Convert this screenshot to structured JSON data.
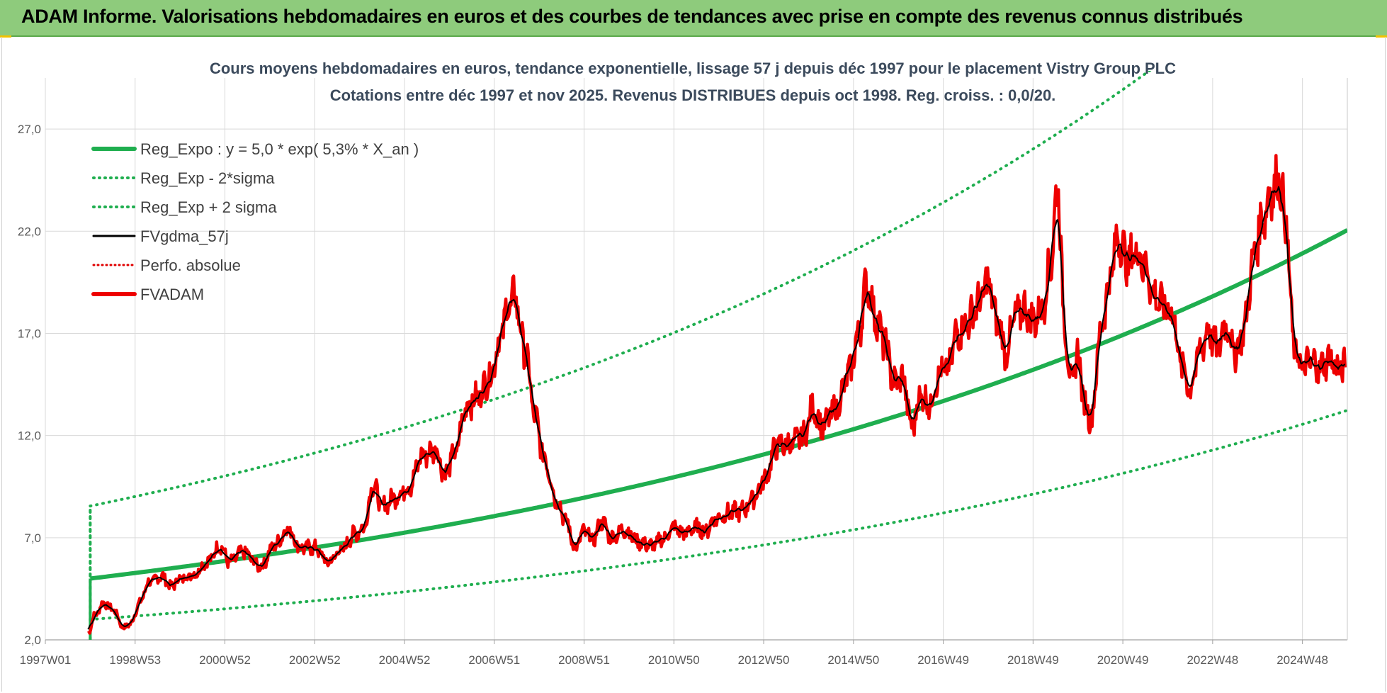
{
  "header": {
    "title": "ADAM Informe. Valorisations hebdomadaires en euros et des courbes de tendances avec prise en compte des revenus connus distribués"
  },
  "colors": {
    "header_bg": "#8ecb7c",
    "reg_expo": "#1fae4f",
    "sigma_lines": "#1fae4f",
    "fvgdma": "#000000",
    "perfo": "#e00000",
    "fvadam": "#ee0000",
    "grid": "#d9d9d9"
  },
  "chart_data": {
    "type": "line",
    "title_line1": "Cours moyens hebdomadaires en euros, tendance exponentielle, lissage 57 j depuis déc 1997 pour le placement Vistry Group PLC",
    "title_line2": "Cotations entre déc 1997 et nov 2025. Revenus DISTRIBUES depuis oct 1998. Reg. croiss. : 0,0/20.",
    "xlabel": "",
    "ylabel": "",
    "x_range": [
      1997.0,
      2026.0
    ],
    "ylim": [
      2.0,
      29.5
    ],
    "y_ticks": [
      "2,0",
      "7,0",
      "12,0",
      "17,0",
      "22,0",
      "27,0"
    ],
    "y_tick_values": [
      2,
      7,
      12,
      17,
      22,
      27
    ],
    "x_tick_labels": [
      "1997W01",
      "1998W53",
      "2000W52",
      "2002W52",
      "2004W52",
      "2006W51",
      "2008W51",
      "2010W50",
      "2012W50",
      "2014W50",
      "2016W49",
      "2018W49",
      "2020W49",
      "2022W48",
      "2024W48"
    ],
    "x_tick_values": [
      1997.0,
      1999.0,
      2001.0,
      2003.0,
      2005.0,
      2007.0,
      2009.0,
      2011.0,
      2013.0,
      2015.0,
      2017.0,
      2019.0,
      2021.0,
      2023.0,
      2025.0
    ],
    "grid": true,
    "legend_position": "top-left",
    "legend": [
      {
        "name": "Reg_Expo : y = 5,0 * exp( 5,3% *  X_an )",
        "style": "solid-thick",
        "color": "#1fae4f"
      },
      {
        "name": "Reg_Exp - 2*sigma",
        "style": "dotted",
        "color": "#1fae4f"
      },
      {
        "name": "Reg_Exp + 2 sigma",
        "style": "dotted",
        "color": "#1fae4f"
      },
      {
        "name": "FVgdma_57j",
        "style": "solid",
        "color": "#000000"
      },
      {
        "name": "Perfo. absolue",
        "style": "dotted",
        "color": "#e00000"
      },
      {
        "name": "FVADAM",
        "style": "solid-thick",
        "color": "#ee0000"
      }
    ],
    "regression": {
      "start_x": 1998.0,
      "end_x": 2026.0,
      "a": 5.0,
      "rate": 0.053,
      "lower_factor": 0.6,
      "upper_factor": 1.71
    },
    "fvadam_points": [
      [
        1997.95,
        2.3
      ],
      [
        1998.1,
        3.2
      ],
      [
        1998.3,
        3.8
      ],
      [
        1998.5,
        3.5
      ],
      [
        1998.75,
        2.6
      ],
      [
        1998.9,
        2.8
      ],
      [
        1999.1,
        3.8
      ],
      [
        1999.3,
        4.8
      ],
      [
        1999.6,
        5.1
      ],
      [
        1999.8,
        4.6
      ],
      [
        2000.0,
        5.0
      ],
      [
        2000.3,
        5.2
      ],
      [
        2000.6,
        5.8
      ],
      [
        2000.9,
        6.6
      ],
      [
        2001.1,
        5.8
      ],
      [
        2001.4,
        6.3
      ],
      [
        2001.8,
        5.6
      ],
      [
        2002.1,
        6.6
      ],
      [
        2002.4,
        7.4
      ],
      [
        2002.7,
        6.5
      ],
      [
        2003.0,
        6.5
      ],
      [
        2003.3,
        5.8
      ],
      [
        2003.6,
        6.4
      ],
      [
        2003.9,
        7.2
      ],
      [
        2004.1,
        7.5
      ],
      [
        2004.3,
        9.6
      ],
      [
        2004.5,
        8.5
      ],
      [
        2004.8,
        9.0
      ],
      [
        2005.1,
        9.5
      ],
      [
        2005.4,
        11.0
      ],
      [
        2005.7,
        11.3
      ],
      [
        2005.9,
        10.1
      ],
      [
        2006.1,
        11.0
      ],
      [
        2006.4,
        13.5
      ],
      [
        2006.6,
        13.8
      ],
      [
        2006.9,
        14.8
      ],
      [
        2007.1,
        16.5
      ],
      [
        2007.3,
        18.2
      ],
      [
        2007.45,
        18.8
      ],
      [
        2007.7,
        16.0
      ],
      [
        2007.9,
        13.0
      ],
      [
        2008.1,
        11.0
      ],
      [
        2008.4,
        8.8
      ],
      [
        2008.6,
        7.8
      ],
      [
        2008.8,
        6.5
      ],
      [
        2009.0,
        7.3
      ],
      [
        2009.2,
        6.9
      ],
      [
        2009.4,
        7.8
      ],
      [
        2009.6,
        7.0
      ],
      [
        2009.9,
        7.4
      ],
      [
        2010.2,
        6.8
      ],
      [
        2010.5,
        6.6
      ],
      [
        2010.8,
        7.0
      ],
      [
        2011.0,
        7.5
      ],
      [
        2011.2,
        7.2
      ],
      [
        2011.5,
        7.5
      ],
      [
        2011.7,
        7.3
      ],
      [
        2011.9,
        7.9
      ],
      [
        2012.2,
        8.2
      ],
      [
        2012.5,
        8.3
      ],
      [
        2012.8,
        9.0
      ],
      [
        2013.0,
        9.8
      ],
      [
        2013.3,
        11.5
      ],
      [
        2013.6,
        11.6
      ],
      [
        2013.9,
        12.0
      ],
      [
        2014.1,
        13.4
      ],
      [
        2014.3,
        12.4
      ],
      [
        2014.6,
        13.3
      ],
      [
        2014.9,
        15.0
      ],
      [
        2015.1,
        16.8
      ],
      [
        2015.3,
        19.4
      ],
      [
        2015.5,
        17.7
      ],
      [
        2015.7,
        16.5
      ],
      [
        2015.9,
        14.6
      ],
      [
        2016.1,
        14.8
      ],
      [
        2016.3,
        12.4
      ],
      [
        2016.5,
        14.0
      ],
      [
        2016.7,
        13.5
      ],
      [
        2016.9,
        15.0
      ],
      [
        2017.1,
        15.2
      ],
      [
        2017.3,
        17.0
      ],
      [
        2017.5,
        17.4
      ],
      [
        2017.8,
        18.5
      ],
      [
        2018.0,
        19.5
      ],
      [
        2018.2,
        17.6
      ],
      [
        2018.4,
        16.1
      ],
      [
        2018.6,
        17.8
      ],
      [
        2018.8,
        18.2
      ],
      [
        2019.0,
        17.6
      ],
      [
        2019.2,
        18.1
      ],
      [
        2019.4,
        20.5
      ],
      [
        2019.55,
        24.2
      ],
      [
        2019.7,
        17.5
      ],
      [
        2019.85,
        14.5
      ],
      [
        2020.0,
        16.0
      ],
      [
        2020.15,
        13.5
      ],
      [
        2020.3,
        12.8
      ],
      [
        2020.5,
        17.0
      ],
      [
        2020.7,
        19.5
      ],
      [
        2020.9,
        21.8
      ],
      [
        2021.1,
        20.5
      ],
      [
        2021.3,
        21.0
      ],
      [
        2021.5,
        20.3
      ],
      [
        2021.7,
        18.8
      ],
      [
        2021.9,
        18.3
      ],
      [
        2022.1,
        18.0
      ],
      [
        2022.3,
        15.5
      ],
      [
        2022.5,
        14.3
      ],
      [
        2022.7,
        16.0
      ],
      [
        2022.9,
        17.2
      ],
      [
        2023.1,
        16.2
      ],
      [
        2023.3,
        17.5
      ],
      [
        2023.5,
        16.0
      ],
      [
        2023.7,
        17.2
      ],
      [
        2023.9,
        20.5
      ],
      [
        2024.1,
        22.5
      ],
      [
        2024.3,
        24.0
      ],
      [
        2024.5,
        24.5
      ],
      [
        2024.65,
        22.0
      ],
      [
        2024.8,
        16.5
      ],
      [
        2025.0,
        15.3
      ],
      [
        2025.2,
        15.6
      ],
      [
        2025.4,
        15.3
      ],
      [
        2025.6,
        15.8
      ],
      [
        2025.8,
        15.2
      ],
      [
        2025.95,
        15.4
      ]
    ]
  }
}
